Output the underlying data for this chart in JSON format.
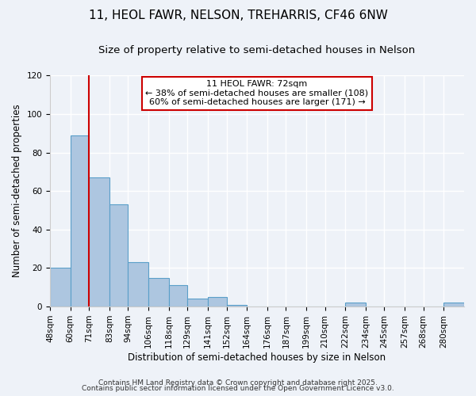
{
  "title": "11, HEOL FAWR, NELSON, TREHARRIS, CF46 6NW",
  "subtitle": "Size of property relative to semi-detached houses in Nelson",
  "xlabel": "Distribution of semi-detached houses by size in Nelson",
  "ylabel": "Number of semi-detached properties",
  "bin_labels": [
    "48sqm",
    "60sqm",
    "71sqm",
    "83sqm",
    "94sqm",
    "106sqm",
    "118sqm",
    "129sqm",
    "141sqm",
    "152sqm",
    "164sqm",
    "176sqm",
    "187sqm",
    "199sqm",
    "210sqm",
    "222sqm",
    "234sqm",
    "245sqm",
    "257sqm",
    "268sqm",
    "280sqm"
  ],
  "bin_edges": [
    48,
    60,
    71,
    83,
    94,
    106,
    118,
    129,
    141,
    152,
    164,
    176,
    187,
    199,
    210,
    222,
    234,
    245,
    257,
    268,
    280
  ],
  "bar_heights": [
    20,
    89,
    67,
    53,
    23,
    15,
    11,
    4,
    5,
    1,
    0,
    0,
    0,
    0,
    0,
    2,
    0,
    0,
    0,
    0,
    2
  ],
  "bar_color": "#adc6e0",
  "bar_edge_color": "#5a9fc9",
  "vline_x": 71,
  "vline_color": "#cc0000",
  "annotation_title": "11 HEOL FAWR: 72sqm",
  "annotation_line2": "← 38% of semi-detached houses are smaller (108)",
  "annotation_line3": "60% of semi-detached houses are larger (171) →",
  "annotation_box_color": "#cc0000",
  "annotation_bg": "#ffffff",
  "ylim": [
    0,
    120
  ],
  "yticks": [
    0,
    20,
    40,
    60,
    80,
    100,
    120
  ],
  "footer1": "Contains HM Land Registry data © Crown copyright and database right 2025.",
  "footer2": "Contains public sector information licensed under the Open Government Licence v3.0.",
  "bg_color": "#eef2f8",
  "grid_color": "#ffffff",
  "title_fontsize": 11,
  "subtitle_fontsize": 9.5,
  "axis_label_fontsize": 8.5,
  "tick_fontsize": 7.5,
  "footer_fontsize": 6.5,
  "annotation_fontsize": 8.0
}
